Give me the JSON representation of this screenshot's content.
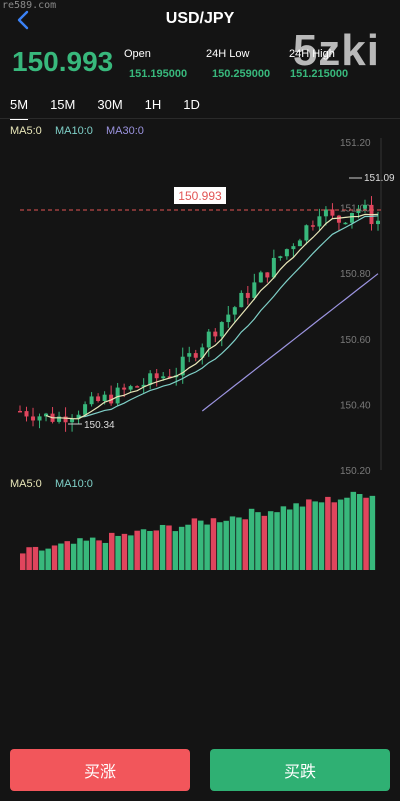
{
  "watermark": {
    "site": "re589.com",
    "logo": "5zki"
  },
  "header": {
    "title": "USD/JPY"
  },
  "price": {
    "current": "150.993"
  },
  "stats": [
    {
      "label": "Open",
      "value": "151.195000"
    },
    {
      "label": "24H Low",
      "value": "150.259000"
    },
    {
      "label": "24H High",
      "value": "151.215000"
    }
  ],
  "tabs": [
    {
      "label": "5M",
      "active": true
    },
    {
      "label": "15M",
      "active": false
    },
    {
      "label": "30M",
      "active": false
    },
    {
      "label": "1H",
      "active": false
    },
    {
      "label": "1D",
      "active": false
    }
  ],
  "indicators": {
    "ma5": "MA5:0",
    "ma10": "MA10:0",
    "ma30": "MA30:0",
    "vol_ma5": "MA5:0",
    "vol_ma10": "MA10:0"
  },
  "colors": {
    "up": "#38b87c",
    "down": "#e0455d",
    "ma5": "#e8e6b8",
    "ma10": "#7fd0c8",
    "ma30": "#9c94e0",
    "current_line": "#e25555"
  },
  "chart_data": {
    "type": "candlestick",
    "y_ticks": [
      "151.20",
      "151.00",
      "150.80",
      "150.60",
      "150.40",
      "150.20"
    ],
    "ylim": [
      150.2,
      151.2
    ],
    "current_price_label": "150.993",
    "high_annotation": "151.09",
    "low_annotation": "150.34",
    "grid": false
  },
  "actions": {
    "buy_rise": "买涨",
    "buy_fall": "买跌"
  }
}
